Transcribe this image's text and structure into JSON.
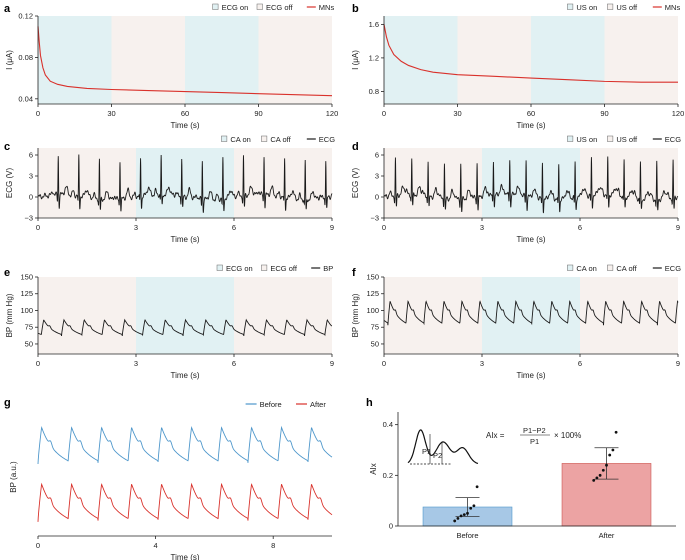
{
  "colors": {
    "shade_on": "#e1f1f3",
    "shade_off": "#f7f1ee",
    "red_trace": "#d9312b",
    "black_trace": "#1a1a1a",
    "blue_trace": "#4e97cb",
    "red_soft": "#cc5550",
    "bar_before": "#a7c8e6",
    "bar_after": "#eca3a3"
  },
  "chart_data": [
    {
      "id": "a",
      "letter": "a",
      "type": "line",
      "ylabel": "I (μA)",
      "xlabel": "Time (s)",
      "xlim": [
        0,
        120
      ],
      "ylim": [
        0.035,
        0.12
      ],
      "xticks": [
        0,
        30,
        60,
        90,
        120
      ],
      "xtick_labels": [
        "0",
        "30",
        "60",
        "90",
        "120"
      ],
      "yticks": [
        0.04,
        0.08,
        0.12
      ],
      "ytick_labels": [
        "0.04",
        "0.08",
        "0.12"
      ],
      "legend": [
        "ECG on",
        "ECG off",
        "MNs"
      ],
      "bands": [
        {
          "from": 0,
          "to": 30,
          "state": "on"
        },
        {
          "from": 30,
          "to": 60,
          "state": "off"
        },
        {
          "from": 60,
          "to": 90,
          "state": "on"
        },
        {
          "from": 90,
          "to": 120,
          "state": "off"
        }
      ],
      "series": [
        {
          "name": "MNs",
          "color": "red",
          "x": [
            0,
            0.5,
            1,
            2,
            3,
            5,
            8,
            12,
            20,
            30,
            45,
            60,
            75,
            90,
            105,
            120
          ],
          "y": [
            0.11,
            0.095,
            0.082,
            0.07,
            0.063,
            0.057,
            0.054,
            0.052,
            0.05,
            0.049,
            0.048,
            0.047,
            0.046,
            0.045,
            0.044,
            0.043
          ]
        }
      ]
    },
    {
      "id": "b",
      "letter": "b",
      "type": "line",
      "ylabel": "I (μA)",
      "xlabel": "Time (s)",
      "xlim": [
        0,
        120
      ],
      "ylim": [
        0.65,
        1.7
      ],
      "xticks": [
        0,
        30,
        60,
        90,
        120
      ],
      "xtick_labels": [
        "0",
        "30",
        "60",
        "90",
        "120"
      ],
      "yticks": [
        0.8,
        1.2,
        1.6
      ],
      "ytick_labels": [
        "0.8",
        "1.2",
        "1.6"
      ],
      "legend": [
        "US on",
        "US off",
        "MNs"
      ],
      "bands": [
        {
          "from": 0,
          "to": 30,
          "state": "on"
        },
        {
          "from": 30,
          "to": 60,
          "state": "off"
        },
        {
          "from": 60,
          "to": 90,
          "state": "on"
        },
        {
          "from": 90,
          "to": 120,
          "state": "off"
        }
      ],
      "series": [
        {
          "name": "MNs",
          "color": "red",
          "x": [
            0,
            1,
            2,
            4,
            7,
            10,
            15,
            20,
            30,
            45,
            60,
            75,
            90,
            105,
            120
          ],
          "y": [
            1.6,
            1.45,
            1.35,
            1.24,
            1.16,
            1.11,
            1.06,
            1.03,
            1.0,
            0.98,
            0.96,
            0.94,
            0.92,
            0.91,
            0.91
          ]
        }
      ]
    },
    {
      "id": "c",
      "letter": "c",
      "type": "line",
      "ylabel": "ECG (V)",
      "xlabel": "Time (s)",
      "xlim": [
        0,
        9
      ],
      "ylim": [
        -3,
        7
      ],
      "xticks": [
        0,
        3,
        6,
        9
      ],
      "xtick_labels": [
        "0",
        "3",
        "6",
        "9"
      ],
      "yticks": [
        -3,
        0,
        3,
        6
      ],
      "ytick_labels": [
        "−3",
        "0",
        "3",
        "6"
      ],
      "legend": [
        "CA on",
        "CA off",
        "ECG"
      ],
      "bands": [
        {
          "from": 0,
          "to": 3,
          "state": "off"
        },
        {
          "from": 3,
          "to": 6,
          "state": "on"
        },
        {
          "from": 6,
          "to": 9,
          "state": "off"
        }
      ],
      "series": [
        {
          "name": "ECG",
          "color": "black",
          "waveform": "ecg",
          "beats": [
            0.62,
            1.25,
            1.88,
            2.51,
            3.14,
            3.77,
            4.4,
            5.03,
            5.66,
            6.29,
            6.92,
            7.55,
            8.18,
            8.81
          ],
          "peak": 5.6,
          "baseline": 0
        }
      ]
    },
    {
      "id": "d",
      "letter": "d",
      "type": "line",
      "ylabel": "ECG (V)",
      "xlabel": "Time (s)",
      "xlim": [
        0,
        9
      ],
      "ylim": [
        -3,
        7
      ],
      "xticks": [
        0,
        3,
        6,
        9
      ],
      "xtick_labels": [
        "0",
        "3",
        "6",
        "9"
      ],
      "yticks": [
        -3,
        0,
        3,
        6
      ],
      "ytick_labels": [
        "−3",
        "0",
        "3",
        "6"
      ],
      "legend": [
        "US on",
        "US off",
        "ECG"
      ],
      "bands": [
        {
          "from": 0,
          "to": 3,
          "state": "off"
        },
        {
          "from": 3,
          "to": 6,
          "state": "on"
        },
        {
          "from": 6,
          "to": 9,
          "state": "off"
        }
      ],
      "series": [
        {
          "name": "ECG",
          "color": "black",
          "waveform": "ecg",
          "beats": [
            0.35,
            0.85,
            1.35,
            1.85,
            2.35,
            2.85,
            3.35,
            3.85,
            4.35,
            4.85,
            5.35,
            5.85,
            6.35,
            6.85,
            7.35,
            7.85,
            8.35,
            8.85
          ],
          "peak": 5.2,
          "baseline": 0
        }
      ]
    },
    {
      "id": "e",
      "letter": "e",
      "type": "line",
      "ylabel": "BP (mm Hg)",
      "xlabel": "Time (s)",
      "xlim": [
        0,
        9
      ],
      "ylim": [
        35,
        150
      ],
      "xticks": [
        0,
        3,
        6,
        9
      ],
      "xtick_labels": [
        "0",
        "3",
        "6",
        "9"
      ],
      "yticks": [
        50,
        75,
        100,
        125,
        150
      ],
      "ytick_labels": [
        "50",
        "75",
        "100",
        "125",
        "150"
      ],
      "legend": [
        "ECG on",
        "ECG off",
        "BP"
      ],
      "bands": [
        {
          "from": 0,
          "to": 3,
          "state": "off"
        },
        {
          "from": 3,
          "to": 6,
          "state": "on"
        },
        {
          "from": 6,
          "to": 9,
          "state": "off"
        }
      ],
      "series": [
        {
          "name": "BP",
          "color": "black",
          "waveform": "bp",
          "beats": [
            0.1,
            0.72,
            1.34,
            1.96,
            2.58,
            3.2,
            3.82,
            4.44,
            5.06,
            5.68,
            6.3,
            6.92,
            7.54,
            8.16,
            8.78
          ],
          "period": 0.62,
          "low": 62,
          "high": 86
        }
      ]
    },
    {
      "id": "f",
      "letter": "f",
      "type": "line",
      "ylabel": "BP (mm Hg)",
      "xlabel": "Time (s)",
      "xlim": [
        0,
        9
      ],
      "ylim": [
        35,
        150
      ],
      "xticks": [
        0,
        3,
        6,
        9
      ],
      "xtick_labels": [
        "0",
        "3",
        "6",
        "9"
      ],
      "yticks": [
        50,
        75,
        100,
        125,
        150
      ],
      "ytick_labels": [
        "50",
        "75",
        "100",
        "125",
        "150"
      ],
      "legend": [
        "CA on",
        "CA off",
        "ECG"
      ],
      "bands": [
        {
          "from": 0,
          "to": 3,
          "state": "off"
        },
        {
          "from": 3,
          "to": 6,
          "state": "on"
        },
        {
          "from": 6,
          "to": 9,
          "state": "off"
        }
      ],
      "series": [
        {
          "name": "ECG",
          "color": "black",
          "waveform": "bp",
          "beats": [
            0.12,
            0.67,
            1.22,
            1.77,
            2.32,
            2.87,
            3.42,
            3.97,
            4.52,
            5.07,
            5.62,
            6.17,
            6.72,
            7.27,
            7.82,
            8.37,
            8.92
          ],
          "period": 0.55,
          "low": 78,
          "high": 114
        }
      ]
    },
    {
      "id": "g",
      "letter": "g",
      "type": "line",
      "ylabel": "BP (a.u.)",
      "xlabel": "Time (s)",
      "xlim": [
        0,
        10
      ],
      "ylim": [
        0,
        10
      ],
      "xticks": [
        0,
        4,
        8
      ],
      "xtick_labels": [
        "0",
        "4",
        "8"
      ],
      "legend": [
        "Before",
        "After"
      ],
      "series": [
        {
          "name": "Before",
          "color": "blue",
          "waveform": "bp",
          "beats": [
            0,
            1.02,
            2.04,
            3.06,
            4.08,
            5.1,
            6.12,
            7.14,
            8.16,
            9.18
          ],
          "period": 1.02,
          "low": 6.1,
          "high": 9.2
        },
        {
          "name": "After",
          "color": "red",
          "waveform": "bp",
          "beats": [
            0,
            1.02,
            2.04,
            3.06,
            4.08,
            5.1,
            6.12,
            7.14,
            8.16,
            9.18
          ],
          "period": 1.02,
          "low": 1.2,
          "high": 4.4
        }
      ]
    },
    {
      "id": "h",
      "letter": "h",
      "type": "bar",
      "ylabel": "AIx",
      "categories": [
        "Before",
        "After"
      ],
      "values": [
        0.075,
        0.247
      ],
      "errors": [
        0.037,
        0.062
      ],
      "ylim": [
        0,
        0.45
      ],
      "yticks": [
        0,
        0.2,
        0.4
      ],
      "ytick_labels": [
        "0",
        "0.2",
        "0.4"
      ],
      "points": [
        [
          0.02,
          0.03,
          0.04,
          0.045,
          0.05,
          0.07,
          0.08,
          0.155
        ],
        [
          0.18,
          0.19,
          0.2,
          0.22,
          0.24,
          0.28,
          0.3,
          0.37
        ]
      ],
      "formula": {
        "lhs": "AIx =",
        "numerator": "P1−P2",
        "denominator": "P1",
        "tail": "× 100%"
      },
      "inset_labels": [
        "P1",
        "P2"
      ]
    }
  ]
}
